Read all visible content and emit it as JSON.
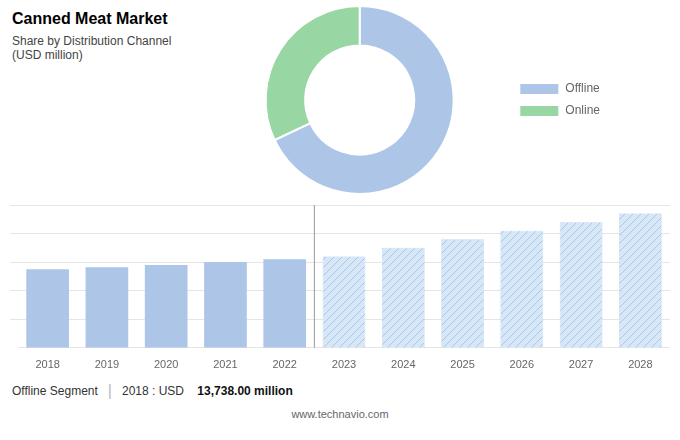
{
  "chart_data": [
    {
      "type": "pie",
      "title": "Canned Meat Market",
      "subtitle": "Share by Distribution Channel\n(USD million)",
      "categories": [
        "Offline",
        "Online"
      ],
      "values": [
        68,
        32
      ],
      "colors": [
        "#adc6e8",
        "#98d6a4"
      ],
      "legend": "right"
    },
    {
      "type": "bar",
      "categories": [
        2018,
        2019,
        2020,
        2021,
        2022,
        2023,
        2024,
        2025,
        2026,
        2027,
        2028
      ],
      "series": [
        {
          "color": "#adc6e8",
          "values": [
            13738,
            14100,
            14500,
            15000,
            15500,
            null,
            null,
            null,
            null,
            null,
            null
          ]
        },
        {
          "color": "#d6e8f8",
          "values": [
            null,
            null,
            null,
            null,
            null,
            16000,
            17500,
            19000,
            20500,
            22000,
            23500
          ]
        }
      ],
      "ylim": [
        0,
        25000
      ],
      "yticks": [
        5000,
        10000,
        15000,
        20000,
        25000
      ],
      "grid": true,
      "tick_labels": "x",
      "annotations": [
        "Offline Segment",
        "|",
        "2018 : USD ",
        "13,738.00 million",
        "www.technavio.com"
      ]
    }
  ]
}
